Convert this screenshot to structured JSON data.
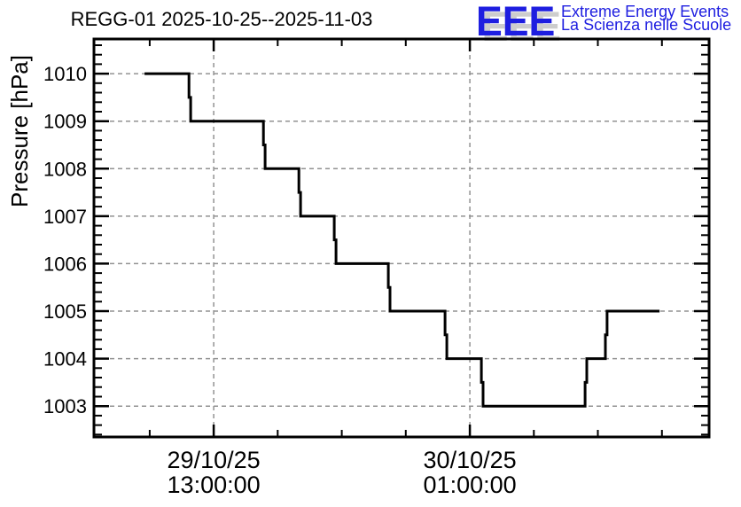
{
  "header": {
    "title": "REGG-01 2025-10-25--2025-11-03"
  },
  "logo": {
    "acronym": "EEE",
    "line1": "Extreme Energy Events",
    "line2": "La Scienza nelle Scuole",
    "color": "#1e1ee0",
    "shadow_color": "#cdcdcd"
  },
  "chart_data": {
    "type": "line",
    "step_style": "step-after",
    "title": "REGG-01 2025-10-25--2025-11-03",
    "xlabel": "",
    "ylabel": "Pressure [hPa]",
    "ylim": [
      1002.35,
      1010.73
    ],
    "xlim_hours": [
      7.39,
      36.21
    ],
    "t_unit": "hours since 29/10/25 00:00:00",
    "grid": true,
    "legend": "none",
    "grid_color": "#929292",
    "axis_color": "#000000",
    "y_major_ticks": [
      1003,
      1004,
      1005,
      1006,
      1007,
      1008,
      1009,
      1010
    ],
    "y_minor_step": 0.2,
    "x_ticks": [
      {
        "t": 10,
        "major": false
      },
      {
        "t": 13,
        "major": true,
        "date": "29/10/25",
        "time": "13:00:00"
      },
      {
        "t": 16,
        "major": false
      },
      {
        "t": 19,
        "major": false
      },
      {
        "t": 22,
        "major": false
      },
      {
        "t": 25,
        "major": true,
        "date": "30/10/25",
        "time": "01:00:00"
      },
      {
        "t": 28,
        "major": false
      },
      {
        "t": 31,
        "major": false
      },
      {
        "t": 34,
        "major": false
      }
    ],
    "series": [
      {
        "name": "pressure",
        "color": "#000000",
        "points": [
          {
            "t": 9.76,
            "time": "29/10/25 09:45",
            "p": 1010
          },
          {
            "t": 11.84,
            "time": "29/10/25 11:50",
            "p": 1009.5
          },
          {
            "t": 11.92,
            "time": "29/10/25 11:55",
            "p": 1009
          },
          {
            "t": 15.33,
            "time": "29/10/25 15:20",
            "p": 1008.5
          },
          {
            "t": 15.41,
            "time": "29/10/25 15:25",
            "p": 1008
          },
          {
            "t": 16.99,
            "time": "29/10/25 17:00",
            "p": 1007.5
          },
          {
            "t": 17.07,
            "time": "29/10/25 17:05",
            "p": 1007
          },
          {
            "t": 18.65,
            "time": "29/10/25 18:40",
            "p": 1006.5
          },
          {
            "t": 18.73,
            "time": "29/10/25 18:45",
            "p": 1006
          },
          {
            "t": 21.18,
            "time": "29/10/25 21:10",
            "p": 1005.5
          },
          {
            "t": 21.26,
            "time": "29/10/25 21:15",
            "p": 1005
          },
          {
            "t": 23.84,
            "time": "29/10/25 23:50",
            "p": 1004.5
          },
          {
            "t": 23.92,
            "time": "29/10/25 23:55",
            "p": 1004
          },
          {
            "t": 25.54,
            "time": "30/10/25 01:30",
            "p": 1003.5
          },
          {
            "t": 25.62,
            "time": "30/10/25 01:35",
            "p": 1003
          },
          {
            "t": 30.4,
            "time": "30/10/25 06:25",
            "p": 1003.5
          },
          {
            "t": 30.48,
            "time": "30/10/25 06:30",
            "p": 1004
          },
          {
            "t": 31.35,
            "time": "30/10/25 07:20",
            "p": 1004.5
          },
          {
            "t": 31.43,
            "time": "30/10/25 07:25",
            "p": 1005
          },
          {
            "t": 33.89,
            "time": "30/10/25 09:55",
            "p": 1005
          }
        ]
      }
    ]
  }
}
